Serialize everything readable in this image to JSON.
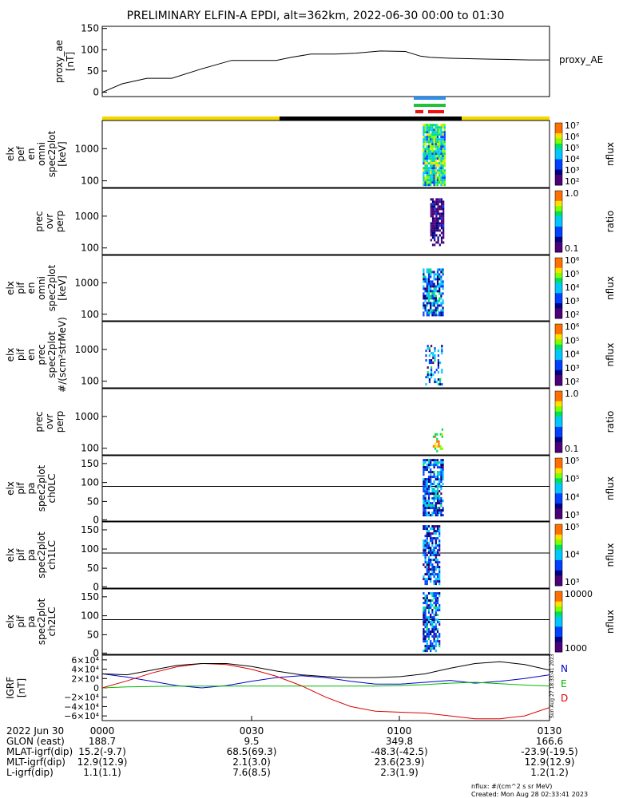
{
  "title": "PRELIMINARY ELFIN-A EPDI, alt=362km, 2022-06-30 00:00 to 01:30",
  "colors": {
    "bar_yellow": "#f5d800",
    "bar_black": "#000000",
    "indicator_blue": "#2a8ff0",
    "indicator_green": "#22c33a",
    "indicator_red": "#ee1111",
    "grf_n": "#0000cc",
    "grf_e": "#00bb00",
    "grf_d": "#dd0000"
  },
  "chart_data": [
    {
      "type": "line",
      "panel": "proxy_ae",
      "ylabel": [
        "proxy_ae",
        "[nT]"
      ],
      "right_label": "proxy_AE",
      "yticks": [
        "150",
        "100",
        "50",
        "0"
      ],
      "ylim": [
        -10,
        155
      ],
      "x_minutes": [
        0,
        4,
        9,
        14,
        20,
        26,
        31,
        35,
        38,
        42,
        47,
        51,
        56,
        61,
        64,
        66,
        70,
        78,
        86,
        90
      ],
      "values": [
        0,
        20,
        33,
        33,
        55,
        75,
        75,
        75,
        82,
        90,
        90,
        92,
        97,
        96,
        85,
        82,
        80,
        78,
        76,
        76
      ]
    },
    {
      "type": "heatmap",
      "panel": "elx_pef_en_spec2plot_omni",
      "ylabel": [
        "elx",
        "pef",
        "en",
        "omni",
        "spec2plot",
        "[keV]"
      ],
      "yticks": [
        "1000",
        "100"
      ],
      "colorbar": {
        "label": "nflux",
        "ticks": [
          "10⁷",
          "10⁶",
          "10⁵",
          "10⁴",
          "10³",
          "10²"
        ]
      }
    },
    {
      "type": "heatmap",
      "panel": "prec_ovr_perp_1",
      "ylabel": [
        "prec",
        "ovr",
        "perp"
      ],
      "yticks": [
        "1000",
        "100"
      ],
      "colorbar": {
        "label": "ratio",
        "ticks": [
          "1.0",
          "0.1"
        ]
      }
    },
    {
      "type": "heatmap",
      "panel": "elx_pif_en_spec2plot_omni",
      "ylabel": [
        "elx",
        "pif",
        "en",
        "omni",
        "spec2plot",
        "[keV]"
      ],
      "yticks": [
        "1000",
        "100"
      ],
      "colorbar": {
        "label": "nflux",
        "ticks": [
          "10⁶",
          "10⁵",
          "10⁴",
          "10³",
          "10²"
        ]
      }
    },
    {
      "type": "heatmap",
      "panel": "elx_pif_en_spec2plot_prec",
      "ylabel": [
        "elx",
        "pif",
        "en",
        "prec",
        "spec2plot",
        "#/(scm²strMeV)"
      ],
      "yticks": [
        "1000",
        "100"
      ],
      "colorbar": {
        "label": "nflux",
        "ticks": [
          "10⁶",
          "10⁵",
          "10⁴",
          "10³",
          "10²"
        ]
      }
    },
    {
      "type": "heatmap",
      "panel": "prec_ovr_perp_2",
      "ylabel": [
        "prec",
        "ovr",
        "perp"
      ],
      "yticks": [
        "1000",
        "100"
      ],
      "colorbar": {
        "label": "ratio",
        "ticks": [
          "1.0",
          "0.1"
        ]
      }
    },
    {
      "type": "heatmap",
      "panel": "elx_pif_pa_spec2plot_ch0LC",
      "ylabel": [
        "elx",
        "pif",
        "pa",
        "spec2plot",
        "ch0LC"
      ],
      "yticks": [
        "150",
        "100",
        "50",
        "0"
      ],
      "colorbar": {
        "label": "nflux",
        "ticks": [
          "10⁵",
          "10⁵",
          "10⁴",
          "10³"
        ]
      }
    },
    {
      "type": "heatmap",
      "panel": "elx_pif_pa_spec2plot_ch1LC",
      "ylabel": [
        "elx",
        "pif",
        "pa",
        "spec2plot",
        "ch1LC"
      ],
      "yticks": [
        "150",
        "100",
        "50",
        "0"
      ],
      "colorbar": {
        "label": "nflux",
        "ticks": [
          "10⁵",
          "10⁴",
          "10³"
        ]
      }
    },
    {
      "type": "heatmap",
      "panel": "elx_pif_pa_spec2plot_ch2LC",
      "ylabel": [
        "elx",
        "pif",
        "pa",
        "spec2plot",
        "ch2LC"
      ],
      "yticks": [
        "150",
        "100",
        "50",
        "0"
      ],
      "colorbar": {
        "label": "nflux",
        "ticks": [
          "10000",
          "1000"
        ]
      }
    },
    {
      "type": "line",
      "panel": "igrf",
      "ylabel": [
        "IGRF",
        "[nT]"
      ],
      "yticks": [
        "6×10⁴",
        "4×10⁴",
        "2×10⁴",
        "0",
        "−2×10⁴",
        "−4×10⁴",
        "−6×10⁴"
      ],
      "ylim": [
        -70000,
        70000
      ],
      "x_minutes": [
        0,
        5,
        10,
        15,
        20,
        25,
        30,
        35,
        40,
        45,
        50,
        55,
        60,
        65,
        70,
        75,
        80,
        85,
        90
      ],
      "series": [
        {
          "name": "N",
          "values": [
            30000,
            23000,
            14000,
            5000,
            0,
            5000,
            14000,
            22000,
            26000,
            22000,
            14000,
            8000,
            8000,
            12000,
            16000,
            10000,
            14000,
            20000,
            28000
          ]
        },
        {
          "name": "E",
          "values": [
            0,
            2000,
            3000,
            4000,
            4000,
            4000,
            4000,
            4000,
            4000,
            4000,
            4000,
            4000,
            5000,
            7000,
            10000,
            12000,
            9000,
            6000,
            4000
          ]
        },
        {
          "name": "D",
          "values": [
            0,
            15000,
            32000,
            45000,
            52000,
            50000,
            40000,
            25000,
            5000,
            -20000,
            -40000,
            -50000,
            -52000,
            -54000,
            -60000,
            -66000,
            -66000,
            -60000,
            -42000
          ]
        },
        {
          "name": "",
          "values": [
            30000,
            28000,
            38000,
            48000,
            52000,
            52000,
            46000,
            36000,
            28000,
            24000,
            22000,
            22000,
            24000,
            30000,
            42000,
            52000,
            56000,
            50000,
            38000
          ]
        }
      ]
    }
  ],
  "orbit_header": {
    "date": "2022 Jun 30",
    "glon": "GLON (east)",
    "mlat": "MLAT-igrf(dip)",
    "mlt": "MLT-igrf(dip)",
    "lshell": "L-igrf(dip)"
  },
  "orbit_columns": [
    {
      "time": "0000",
      "glon": "188.7",
      "mlat": "15.2(-9.7)",
      "mlt": "12.9(12.9)",
      "lshell": "1.1(1.1)"
    },
    {
      "time": "0030",
      "glon": "9.5",
      "mlat": "68.5(69.3)",
      "mlt": "2.1(3.0)",
      "lshell": "7.6(8.5)"
    },
    {
      "time": "0100",
      "glon": "349.8",
      "mlat": "-48.3(-42.5)",
      "mlt": "23.6(23.9)",
      "lshell": "2.3(1.9)"
    },
    {
      "time": "0130",
      "glon": "166.6",
      "mlat": "-23.9(-19.5)",
      "mlt": "12.9(12.9)",
      "lshell": "1.2(1.2)"
    }
  ],
  "footer": {
    "units": "nflux: #/(cm^2 s sr MeV)",
    "created": "Created: Mon Aug 28 02:33:41 2023",
    "side_stamp": "Sun Aug 27 18:33:41 2023"
  }
}
